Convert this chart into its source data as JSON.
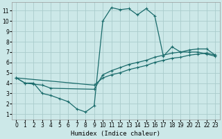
{
  "xlabel": "Humidex (Indice chaleur)",
  "bg_color": "#cce8e8",
  "grid_color": "#aacccc",
  "line_color": "#1a6b6b",
  "xlim": [
    -0.5,
    23.5
  ],
  "ylim": [
    0.5,
    11.8
  ],
  "xticks": [
    0,
    1,
    2,
    3,
    4,
    5,
    6,
    7,
    8,
    9,
    10,
    11,
    12,
    13,
    14,
    15,
    16,
    17,
    18,
    19,
    20,
    21,
    22,
    23
  ],
  "yticks": [
    1,
    2,
    3,
    4,
    5,
    6,
    7,
    8,
    9,
    10,
    11
  ],
  "line1_x": [
    0,
    1,
    2,
    3,
    4,
    5,
    6,
    7,
    8,
    9,
    10,
    11,
    12,
    13,
    14,
    15,
    16,
    17,
    18,
    19,
    20,
    21,
    22,
    23
  ],
  "line1_y": [
    4.5,
    4.0,
    4.0,
    3.0,
    2.8,
    2.5,
    2.2,
    1.5,
    1.2,
    1.8,
    10.0,
    11.3,
    11.1,
    11.2,
    10.6,
    11.2,
    10.5,
    6.6,
    7.5,
    7.0,
    7.0,
    7.0,
    6.8,
    6.6
  ],
  "line2_x": [
    0,
    1,
    2,
    3,
    4,
    9,
    10,
    11,
    12,
    13,
    14,
    15,
    16,
    17,
    18,
    19,
    20,
    21,
    22,
    23
  ],
  "line2_y": [
    4.5,
    4.0,
    3.9,
    3.8,
    3.5,
    3.4,
    4.8,
    5.2,
    5.5,
    5.8,
    6.0,
    6.2,
    6.5,
    6.7,
    6.9,
    7.0,
    7.2,
    7.3,
    7.3,
    6.7
  ],
  "line3_x": [
    0,
    9,
    10,
    11,
    12,
    13,
    14,
    15,
    16,
    17,
    18,
    19,
    20,
    21,
    22,
    23
  ],
  "line3_y": [
    4.5,
    3.8,
    4.5,
    4.8,
    5.0,
    5.3,
    5.5,
    5.7,
    6.0,
    6.2,
    6.4,
    6.5,
    6.7,
    6.8,
    6.9,
    6.7
  ]
}
